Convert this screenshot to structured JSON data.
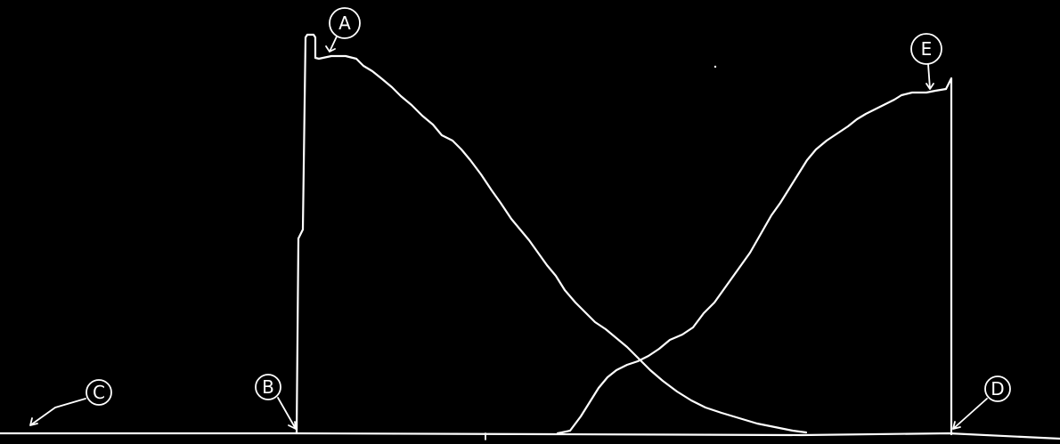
{
  "background_color": "#000000",
  "line_color": "#ffffff",
  "labels": {
    "a": "A",
    "b": "B",
    "c": "C",
    "d": "D",
    "e": "E"
  }
}
